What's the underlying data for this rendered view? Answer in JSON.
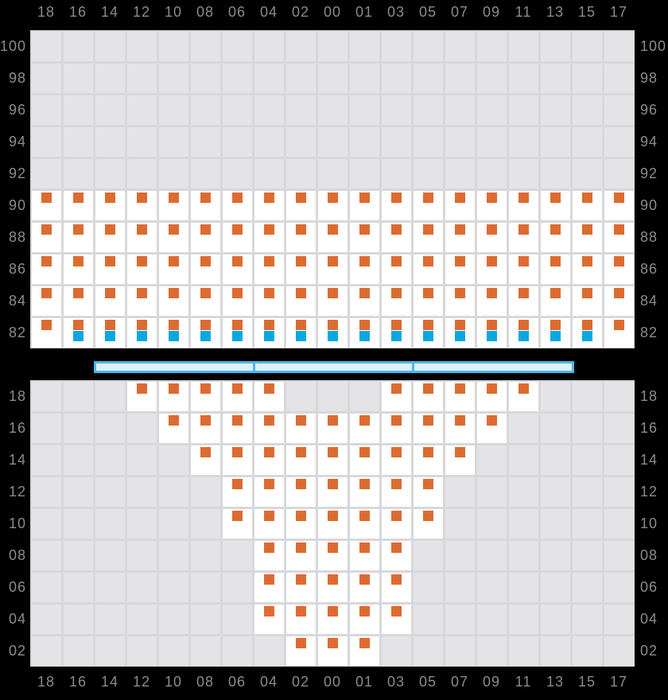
{
  "colors": {
    "background": "#000000",
    "gridline": "#d8d8db",
    "empty_cell": "#e4e4e7",
    "data_cell": "#ffffff",
    "marker_orange": "#dd6b30",
    "marker_blue": "#09a9e0",
    "bar_border": "#49b8ea",
    "bar_fill": "#def0fb",
    "axis_label": "#8a8a91"
  },
  "chart_data": {
    "type": "heatmap",
    "grid": true,
    "columns": [
      "18",
      "16",
      "14",
      "12",
      "10",
      "08",
      "06",
      "04",
      "02",
      "00",
      "01",
      "03",
      "05",
      "07",
      "09",
      "11",
      "13",
      "15",
      "17"
    ],
    "top_axis_labels": [
      "18",
      "16",
      "14",
      "12",
      "10",
      "08",
      "06",
      "04",
      "02",
      "00",
      "01",
      "03",
      "05",
      "07",
      "09",
      "11",
      "13",
      "15",
      "17"
    ],
    "bottom_axis_labels": [
      "18",
      "16",
      "14",
      "12",
      "10",
      "08",
      "06",
      "04",
      "02",
      "00",
      "01",
      "03",
      "05",
      "07",
      "09",
      "11",
      "13",
      "15",
      "17"
    ],
    "panels": [
      {
        "id": "upper",
        "y_axis_left": [
          "100",
          "98",
          "96",
          "94",
          "92",
          "90",
          "88",
          "86",
          "84",
          "82"
        ],
        "y_axis_right": [
          "100",
          "98",
          "96",
          "94",
          "92",
          "90",
          "88",
          "86",
          "84",
          "82"
        ],
        "rows": [
          {
            "y": "90",
            "filled_columns": [
              "18",
              "16",
              "14",
              "12",
              "10",
              "08",
              "06",
              "04",
              "02",
              "00",
              "01",
              "03",
              "05",
              "07",
              "09",
              "11",
              "13",
              "15",
              "17"
            ]
          },
          {
            "y": "88",
            "filled_columns": [
              "18",
              "16",
              "14",
              "12",
              "10",
              "08",
              "06",
              "04",
              "02",
              "00",
              "01",
              "03",
              "05",
              "07",
              "09",
              "11",
              "13",
              "15",
              "17"
            ]
          },
          {
            "y": "86",
            "filled_columns": [
              "18",
              "16",
              "14",
              "12",
              "10",
              "08",
              "06",
              "04",
              "02",
              "00",
              "01",
              "03",
              "05",
              "07",
              "09",
              "11",
              "13",
              "15",
              "17"
            ]
          },
          {
            "y": "84",
            "filled_columns": [
              "18",
              "16",
              "14",
              "12",
              "10",
              "08",
              "06",
              "04",
              "02",
              "00",
              "01",
              "03",
              "05",
              "07",
              "09",
              "11",
              "13",
              "15",
              "17"
            ]
          },
          {
            "y": "82",
            "filled_columns": [
              "18",
              "16",
              "14",
              "12",
              "10",
              "08",
              "06",
              "04",
              "02",
              "00",
              "01",
              "03",
              "05",
              "07",
              "09",
              "11",
              "13",
              "15",
              "17"
            ],
            "secondary_marker_columns": [
              "16",
              "14",
              "12",
              "10",
              "08",
              "06",
              "04",
              "02",
              "00",
              "01",
              "03",
              "05",
              "07",
              "09",
              "11",
              "13",
              "15"
            ]
          }
        ]
      },
      {
        "id": "lower",
        "y_axis_left": [
          "18",
          "16",
          "14",
          "12",
          "10",
          "08",
          "06",
          "04",
          "02"
        ],
        "y_axis_right": [
          "18",
          "16",
          "14",
          "12",
          "10",
          "08",
          "06",
          "04",
          "02"
        ],
        "rows": [
          {
            "y": "18",
            "filled_columns": [
              "12",
              "10",
              "08",
              "06",
              "04",
              "03",
              "05",
              "07",
              "09",
              "11"
            ]
          },
          {
            "y": "16",
            "filled_columns": [
              "10",
              "08",
              "06",
              "04",
              "02",
              "00",
              "01",
              "03",
              "05",
              "07",
              "09"
            ]
          },
          {
            "y": "14",
            "filled_columns": [
              "08",
              "06",
              "04",
              "02",
              "00",
              "01",
              "03",
              "05",
              "07"
            ]
          },
          {
            "y": "12",
            "filled_columns": [
              "06",
              "04",
              "02",
              "00",
              "01",
              "03",
              "05"
            ]
          },
          {
            "y": "10",
            "filled_columns": [
              "06",
              "04",
              "02",
              "00",
              "01",
              "03",
              "05"
            ]
          },
          {
            "y": "08",
            "filled_columns": [
              "04",
              "02",
              "00",
              "01",
              "03"
            ]
          },
          {
            "y": "06",
            "filled_columns": [
              "04",
              "02",
              "00",
              "01",
              "03"
            ]
          },
          {
            "y": "04",
            "filled_columns": [
              "04",
              "02",
              "00",
              "01",
              "03"
            ]
          },
          {
            "y": "02",
            "filled_columns": [
              "02",
              "00",
              "01"
            ]
          }
        ]
      }
    ],
    "divider_bar": {
      "segment_count": 3,
      "start_column": "14",
      "end_column": "13",
      "divider_at_left_edge_of_columns": [
        "04",
        "05"
      ]
    }
  }
}
